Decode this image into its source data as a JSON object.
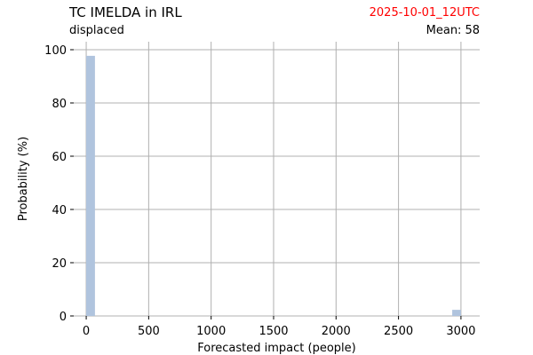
{
  "header": {
    "title": "TC IMELDA in IRL",
    "subtitle": "displaced",
    "date": "2025-10-01_12UTC",
    "date_color": "#ff0000",
    "mean_label": "Mean:",
    "mean_value": "58"
  },
  "chart_data": {
    "type": "bar",
    "title": "TC IMELDA in IRL",
    "xlabel": "Forecasted impact (people)",
    "ylabel": "Probability (%)",
    "xlim": [
      -100,
      3150
    ],
    "ylim": [
      0,
      103
    ],
    "x_ticks": [
      0,
      500,
      1000,
      1500,
      2000,
      2500,
      3000
    ],
    "y_ticks": [
      0,
      20,
      40,
      60,
      80,
      100
    ],
    "grid": true,
    "bar_color": "#b0c4de",
    "bars": [
      {
        "x0": 0,
        "x1": 70,
        "value": 97.7
      },
      {
        "x0": 2930,
        "x1": 3000,
        "value": 2.3
      }
    ]
  }
}
